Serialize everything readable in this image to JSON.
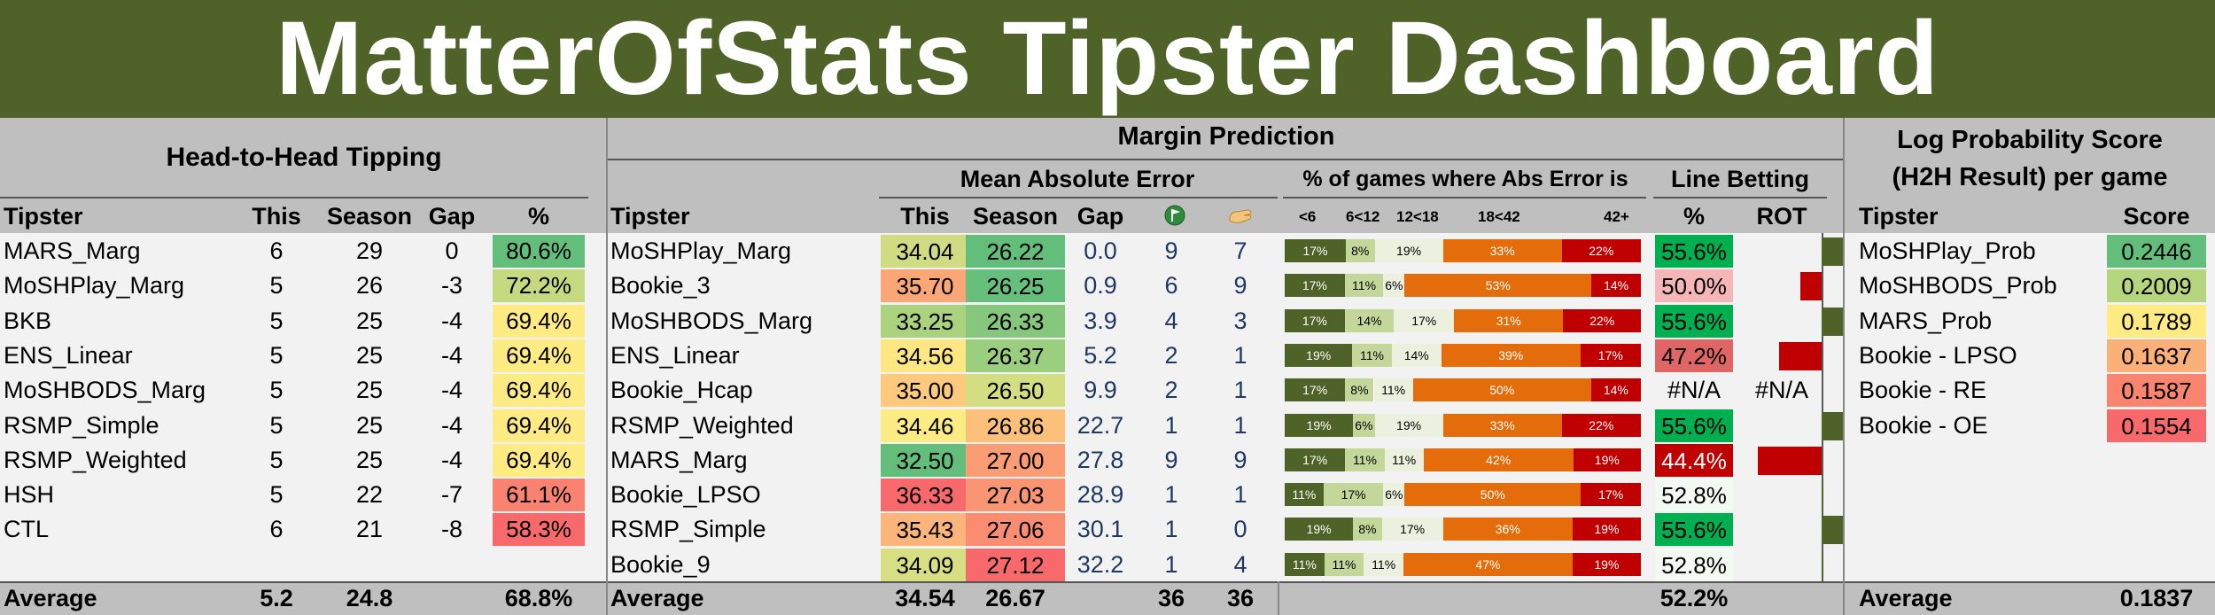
{
  "title": "MatterOfStats Tipster Dashboard",
  "h2h": {
    "heading": "Head-to-Head Tipping",
    "columns": [
      "Tipster",
      "This",
      "Season",
      "Gap",
      "%"
    ],
    "rows": [
      {
        "tipster": "MARS_Marg",
        "this": "6",
        "season": "29",
        "gap": "0",
        "pct": "80.6%",
        "color": "#63be7b"
      },
      {
        "tipster": "MoSHPlay_Marg",
        "this": "5",
        "season": "26",
        "gap": "-3",
        "pct": "72.2%",
        "color": "#c4d980"
      },
      {
        "tipster": "BKB",
        "this": "5",
        "season": "25",
        "gap": "-4",
        "pct": "69.4%",
        "color": "#ffeb84"
      },
      {
        "tipster": "ENS_Linear",
        "this": "5",
        "season": "25",
        "gap": "-4",
        "pct": "69.4%",
        "color": "#ffeb84"
      },
      {
        "tipster": "MoSHBODS_Marg",
        "this": "5",
        "season": "25",
        "gap": "-4",
        "pct": "69.4%",
        "color": "#ffeb84"
      },
      {
        "tipster": "RSMP_Simple",
        "this": "5",
        "season": "25",
        "gap": "-4",
        "pct": "69.4%",
        "color": "#ffeb84"
      },
      {
        "tipster": "RSMP_Weighted",
        "this": "5",
        "season": "25",
        "gap": "-4",
        "pct": "69.4%",
        "color": "#ffeb84"
      },
      {
        "tipster": "HSH",
        "this": "5",
        "season": "22",
        "gap": "-7",
        "pct": "61.1%",
        "color": "#f98370"
      },
      {
        "tipster": "CTL",
        "this": "6",
        "season": "21",
        "gap": "-8",
        "pct": "58.3%",
        "color": "#f8696b"
      }
    ],
    "footer": {
      "label": "Average",
      "this": "5.2",
      "season": "24.8",
      "pct": "68.8%"
    }
  },
  "margin": {
    "heading": "Margin Prediction",
    "mae_heading": "Mean Absolute Error",
    "dist_heading": "% of games where Abs Error is",
    "line_heading": "Line Betting",
    "columns": [
      "Tipster",
      "This",
      "Season",
      "Gap"
    ],
    "icons": [
      "flag-icon",
      "hand-icon"
    ],
    "dist_buckets": [
      "<6",
      "6<12",
      "12<18",
      "18<42",
      "42+"
    ],
    "line_columns": [
      "%",
      "ROT"
    ],
    "rows": [
      {
        "tipster": "MoSHPlay_Marg",
        "this": "34.04",
        "this_color": "#cfdc81",
        "season": "26.22",
        "season_color": "#63be7b",
        "gap": "0.0",
        "flag": "9",
        "hand": "7",
        "dist": [
          "17%",
          "8%",
          "19%",
          "33%",
          "22%"
        ],
        "lb": "55.6%",
        "lb_color": "#00b050",
        "rot": 0.3
      },
      {
        "tipster": "Bookie_3",
        "this": "35.70",
        "this_color": "#fba676",
        "season": "26.25",
        "season_color": "#67bf7c",
        "gap": "0.9",
        "flag": "6",
        "hand": "9",
        "dist": [
          "17%",
          "11%",
          "6%",
          "53%",
          "14%"
        ],
        "lb": "50.0%",
        "lb_color": "#f4b6b6",
        "rot": -0.3
      },
      {
        "tipster": "MoSHBODS_Marg",
        "this": "33.25",
        "this_color": "#aad27f",
        "season": "26.33",
        "season_color": "#85c87d",
        "gap": "3.9",
        "flag": "4",
        "hand": "3",
        "dist": [
          "17%",
          "14%",
          "17%",
          "31%",
          "22%"
        ],
        "lb": "55.6%",
        "lb_color": "#00b050",
        "rot": 0.3
      },
      {
        "tipster": "ENS_Linear",
        "this": "34.56",
        "this_color": "#fee783",
        "season": "26.37",
        "season_color": "#9bce7f",
        "gap": "5.2",
        "flag": "2",
        "hand": "1",
        "dist": [
          "19%",
          "11%",
          "14%",
          "39%",
          "17%"
        ],
        "lb": "47.2%",
        "lb_color": "#e06666",
        "rot": -0.6
      },
      {
        "tipster": "Bookie_Hcap",
        "this": "35.00",
        "this_color": "#fdc97d",
        "season": "26.50",
        "season_color": "#d2de81",
        "gap": "9.9",
        "flag": "2",
        "hand": "1",
        "dist": [
          "17%",
          "8%",
          "11%",
          "50%",
          "14%"
        ],
        "lb": "#N/A",
        "lb_color": "",
        "rot_text": "#N/A"
      },
      {
        "tipster": "RSMP_Weighted",
        "this": "34.46",
        "this_color": "#fdeb84",
        "season": "26.86",
        "season_color": "#fcc07b",
        "gap": "22.7",
        "flag": "1",
        "hand": "1",
        "dist": [
          "19%",
          "6%",
          "19%",
          "33%",
          "22%"
        ],
        "lb": "55.6%",
        "lb_color": "#00b050",
        "rot": 0.3
      },
      {
        "tipster": "MARS_Marg",
        "this": "32.50",
        "this_color": "#63be7b",
        "season": "27.00",
        "season_color": "#fa9d75",
        "gap": "27.8",
        "flag": "9",
        "hand": "9",
        "dist": [
          "17%",
          "11%",
          "11%",
          "42%",
          "19%"
        ],
        "lb": "44.4%",
        "lb_color": "#c00000",
        "rot": -0.9
      },
      {
        "tipster": "Bookie_LPSO",
        "this": "36.33",
        "this_color": "#f8696b",
        "season": "27.03",
        "season_color": "#f99572",
        "gap": "28.9",
        "flag": "1",
        "hand": "1",
        "dist": [
          "11%",
          "17%",
          "6%",
          "50%",
          "17%"
        ],
        "lb": "52.8%",
        "lb_color": "#f2faf2",
        "rot": 0.02
      },
      {
        "tipster": "RSMP_Simple",
        "this": "35.43",
        "this_color": "#fbb479",
        "season": "27.06",
        "season_color": "#f98c71",
        "gap": "30.1",
        "flag": "1",
        "hand": "0",
        "dist": [
          "19%",
          "8%",
          "17%",
          "36%",
          "19%"
        ],
        "lb": "55.6%",
        "lb_color": "#00b050",
        "rot": 0.3
      },
      {
        "tipster": "Bookie_9",
        "this": "34.09",
        "this_color": "#d7df82",
        "season": "27.12",
        "season_color": "#f8696b",
        "gap": "32.2",
        "flag": "1",
        "hand": "4",
        "dist": [
          "11%",
          "11%",
          "11%",
          "47%",
          "19%"
        ],
        "lb": "52.8%",
        "lb_color": "#f2faf2",
        "rot": 0.02
      }
    ],
    "footer": {
      "label": "Average",
      "this": "34.54",
      "season": "26.67",
      "flag": "36",
      "hand": "36",
      "lb": "52.2%"
    }
  },
  "lps": {
    "heading_line1": "Log Probability Score",
    "heading_line2": "(H2H Result) per game",
    "columns": [
      "Tipster",
      "Score"
    ],
    "rows": [
      {
        "tipster": "MoSHPlay_Prob",
        "score": "0.2446",
        "color": "#63be7b"
      },
      {
        "tipster": "MoSHBODS_Prob",
        "score": "0.2009",
        "color": "#b6d57f"
      },
      {
        "tipster": "MARS_Prob",
        "score": "0.1789",
        "color": "#ffeb84"
      },
      {
        "tipster": "Bookie - LPSO",
        "score": "0.1637",
        "color": "#fcb079"
      },
      {
        "tipster": "Bookie - RE",
        "score": "0.1587",
        "color": "#f98570"
      },
      {
        "tipster": "Bookie - OE",
        "score": "0.1554",
        "color": "#f8696b"
      }
    ],
    "footer": {
      "label": "Average",
      "score": "0.1837"
    }
  },
  "colors": {
    "title_bg": "#4f6228",
    "header_bg": "#bfbfbf",
    "body_bg": "#f2f2f2",
    "dist": [
      "#4f6228",
      "#c4d79b",
      "#ebf1de",
      "#e46c0a",
      "#c00000"
    ],
    "rot_pos": "#4f6228",
    "rot_neg": "#c00000"
  }
}
